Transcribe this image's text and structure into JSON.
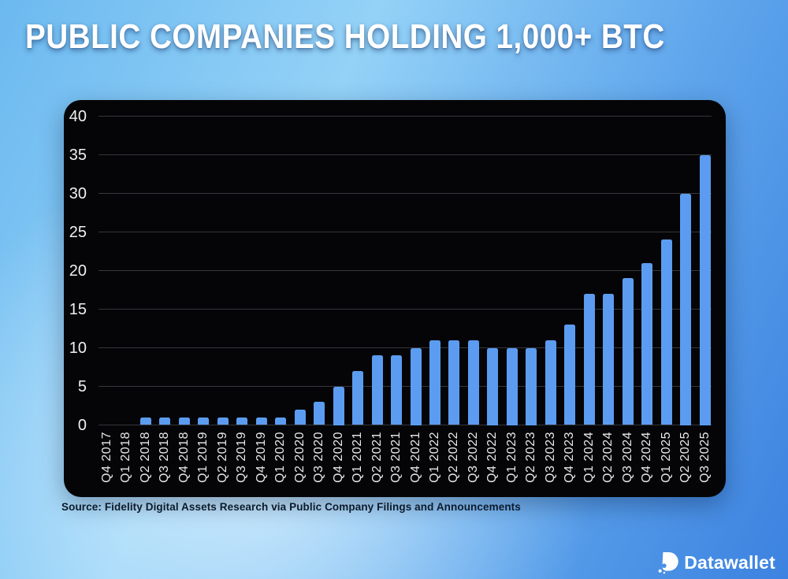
{
  "title": "PUBLIC COMPANIES HOLDING 1,000+ BTC",
  "source_note": "Source: Fidelity Digital Assets Research via Public Company Filings and Announcements",
  "brand": {
    "name": "Datawallet",
    "icon": "datawallet-d-icon"
  },
  "colors": {
    "bar": "#5b9cf1",
    "panel_background": "#050507",
    "gridline": "#36363c",
    "axis_text": "#f0f0f0",
    "x_axis_text": "#e8e8e8",
    "title_text": "#ffffff",
    "source_text": "#0c1a2b",
    "background_light": "#cdeafc",
    "background_deep": "#3c82e0",
    "brand_text": "#ffffff"
  },
  "chart_data": {
    "type": "bar",
    "title": "PUBLIC COMPANIES HOLDING 1,000+ BTC",
    "categories": [
      "Q4 2017",
      "Q1 2018",
      "Q2 2018",
      "Q3 2018",
      "Q4 2018",
      "Q1 2019",
      "Q2 2019",
      "Q3 2019",
      "Q4 2019",
      "Q1 2020",
      "Q2 2020",
      "Q3 2020",
      "Q4 2020",
      "Q1 2021",
      "Q2 2021",
      "Q3 2021",
      "Q4 2021",
      "Q1 2022",
      "Q2 2022",
      "Q3 2022",
      "Q4 2022",
      "Q1 2023",
      "Q2 2023",
      "Q3 2023",
      "Q4 2023",
      "Q1 2024",
      "Q2 2024",
      "Q3 2024",
      "Q4 2024",
      "Q1 2025",
      "Q2 2025",
      "Q3 2025"
    ],
    "values": [
      0,
      0,
      1,
      1,
      1,
      1,
      1,
      1,
      1,
      1,
      2,
      3,
      5,
      7,
      9,
      9,
      10,
      11,
      11,
      11,
      10,
      10,
      10,
      11,
      13,
      17,
      17,
      19,
      21,
      24,
      30,
      35
    ],
    "xlabel": "",
    "ylabel": "",
    "ylim": [
      0,
      40
    ],
    "yticks": [
      0,
      5,
      10,
      15,
      20,
      25,
      30,
      35,
      40
    ],
    "grid": true,
    "legend": false,
    "x_tick_rotation": 90
  }
}
